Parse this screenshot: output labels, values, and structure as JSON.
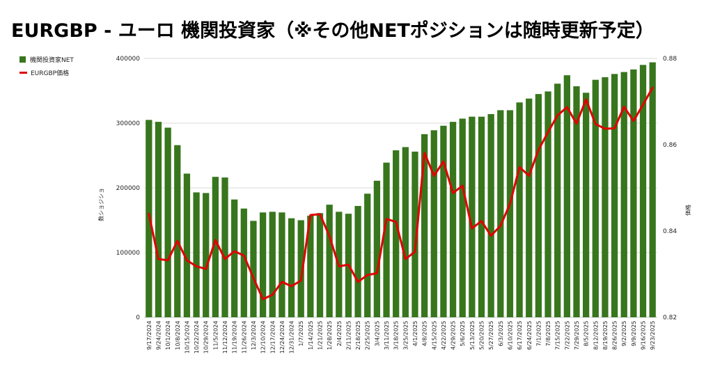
{
  "title": "EURGBP - ユーロ 機関投資家（※その他NETポジションは随時更新予定）",
  "legend": {
    "net": "機関投資家NET",
    "price": "EURGBP価格"
  },
  "colors": {
    "bar": "#38761d",
    "line": "#e00000",
    "grid": "#d9d9d9"
  },
  "chart_data": {
    "type": "bar",
    "categories": [
      "9/17/2024",
      "9/24/2024",
      "10/1/2024",
      "10/8/2024",
      "10/15/2024",
      "10/22/2024",
      "10/29/2024",
      "11/5/2024",
      "11/12/2024",
      "11/19/2024",
      "11/26/2024",
      "12/3/2024",
      "12/10/2024",
      "12/17/2024",
      "12/24/2024",
      "12/31/2024",
      "1/7/2025",
      "1/14/2025",
      "1/21/2025",
      "1/28/2025",
      "2/4/2025",
      "2/11/2025",
      "2/18/2025",
      "2/25/2025",
      "3/4/2025",
      "3/11/2025",
      "3/18/2025",
      "3/25/2025",
      "4/1/2025",
      "4/8/2025",
      "4/15/2025",
      "4/22/2025",
      "4/29/2025",
      "5/6/2025",
      "5/13/2025",
      "5/20/2025",
      "5/27/2025",
      "6/3/2025",
      "6/10/2025",
      "6/17/2025",
      "6/24/2025",
      "7/1/2025",
      "7/8/2025",
      "7/15/2025",
      "7/22/2025",
      "7/29/2025",
      "8/5/2025",
      "8/12/2025",
      "8/19/2025",
      "8/26/2025",
      "9/2/2025",
      "9/9/2025",
      "9/16/2025",
      "9/23/2025"
    ],
    "series": [
      {
        "name": "機関投資家NET",
        "type": "bar",
        "axis": "left",
        "values": [
          305000,
          302000,
          293000,
          266000,
          222000,
          193000,
          192000,
          217000,
          216000,
          182000,
          168000,
          149000,
          162000,
          163000,
          162000,
          153000,
          150000,
          157000,
          161000,
          174000,
          163000,
          160000,
          172000,
          191000,
          211000,
          239000,
          258000,
          263000,
          256000,
          283000,
          289000,
          296000,
          302000,
          307000,
          310000,
          310000,
          314000,
          320000,
          320000,
          332000,
          338000,
          345000,
          349000,
          361000,
          374000,
          357000,
          347000,
          367000,
          371000,
          376000,
          379000,
          383000,
          390000,
          394000
        ]
      },
      {
        "name": "EURGBP価格",
        "type": "line",
        "axis": "right",
        "values": [
          0.844,
          0.8335,
          0.8332,
          0.8377,
          0.8332,
          0.8318,
          0.8312,
          0.8379,
          0.8335,
          0.8353,
          0.8343,
          0.8291,
          0.8242,
          0.8252,
          0.8282,
          0.8272,
          0.8285,
          0.8437,
          0.8439,
          0.8388,
          0.8318,
          0.8322,
          0.8282,
          0.8298,
          0.8302,
          0.8428,
          0.8421,
          0.8335,
          0.8352,
          0.8581,
          0.8528,
          0.8561,
          0.8488,
          0.8505,
          0.8406,
          0.8423,
          0.8389,
          0.8412,
          0.8463,
          0.8548,
          0.8528,
          0.8588,
          0.8629,
          0.8668,
          0.8687,
          0.8649,
          0.8705,
          0.8648,
          0.8637,
          0.8638,
          0.8688,
          0.8655,
          0.8693,
          0.8732
        ]
      }
    ],
    "y_left": {
      "label": "数ショジショ",
      "min": 0,
      "max": 400000,
      "ticks": [
        "0",
        "100000",
        "200000",
        "300000",
        "400000"
      ]
    },
    "y_right": {
      "label": "価格",
      "min": 0.82,
      "max": 0.88,
      "ticks": [
        "0.82",
        "0.84",
        "0.86",
        "0.88"
      ]
    },
    "grid": true,
    "legend_position": "top-left"
  }
}
